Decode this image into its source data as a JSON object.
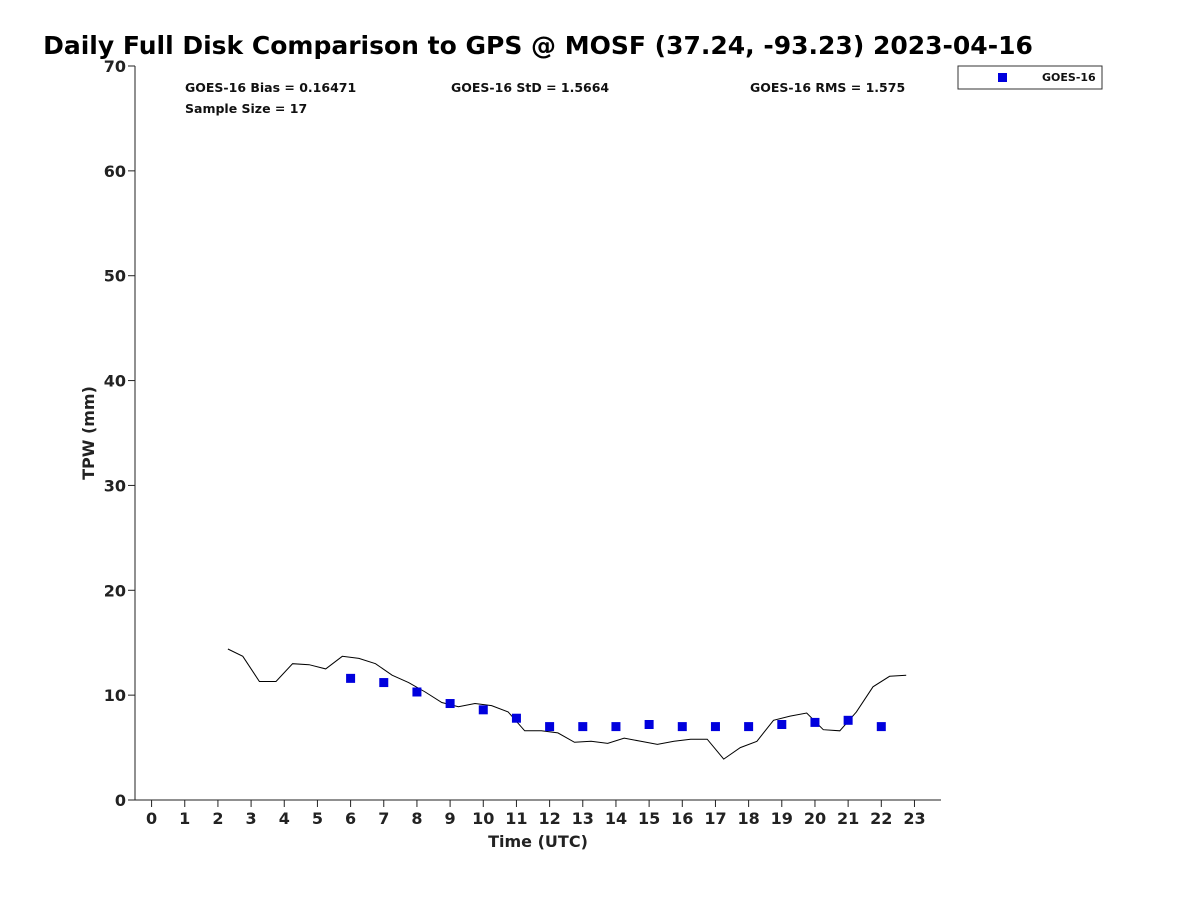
{
  "chart_data": {
    "type": "scatter",
    "title": "Daily Full Disk Comparison to GPS @ MOSF (37.24, -93.23) 2023-04-16",
    "xlabel": "Time (UTC)",
    "ylabel": "TPW (mm)",
    "xlim": [
      -0.5,
      23.8
    ],
    "ylim": [
      0,
      70
    ],
    "xticks": [
      0,
      1,
      2,
      3,
      4,
      5,
      6,
      7,
      8,
      9,
      10,
      11,
      12,
      13,
      14,
      15,
      16,
      17,
      18,
      19,
      20,
      21,
      22,
      23
    ],
    "yticks": [
      0,
      10,
      20,
      30,
      40,
      50,
      60,
      70
    ],
    "grid": false,
    "legend_position": "top-right",
    "stats": {
      "bias": "GOES-16 Bias = 0.16471",
      "std": "GOES-16 StD = 1.5664",
      "rms": "GOES-16 RMS = 1.575",
      "sample": "Sample Size = 17"
    },
    "series": [
      {
        "name": "GOES-16",
        "kind": "scatter",
        "color": "#0000dd",
        "x": [
          6,
          7,
          8,
          9,
          10,
          11,
          12,
          13,
          14,
          15,
          16,
          17,
          18,
          19,
          20,
          21,
          22
        ],
        "y": [
          11.6,
          11.2,
          10.3,
          9.2,
          8.6,
          7.8,
          7.0,
          7.0,
          7.0,
          7.2,
          7.0,
          7.0,
          7.0,
          7.2,
          7.4,
          7.6,
          7.0
        ]
      },
      {
        "kind": "line",
        "color": "#000000",
        "x": [
          2.3,
          2.75,
          3.25,
          3.75,
          4.25,
          4.75,
          5.25,
          5.75,
          6.25,
          6.75,
          7.25,
          7.75,
          8.25,
          8.75,
          9.25,
          9.75,
          10.25,
          10.75,
          11.25,
          11.75,
          12.25,
          12.75,
          13.25,
          13.75,
          14.25,
          14.75,
          15.25,
          15.75,
          16.25,
          16.75,
          17.25,
          17.75,
          18.25,
          18.75,
          19.25,
          19.75,
          20.25,
          20.75,
          21.25,
          21.75,
          22.25,
          22.75
        ],
        "y": [
          14.4,
          13.7,
          11.3,
          11.3,
          13.0,
          12.9,
          12.5,
          13.7,
          13.5,
          13.0,
          11.9,
          11.2,
          10.3,
          9.3,
          8.9,
          9.2,
          9.0,
          8.4,
          6.6,
          6.6,
          6.4,
          5.5,
          5.6,
          5.4,
          5.9,
          5.6,
          5.3,
          5.6,
          5.8,
          5.8,
          3.9,
          5.0,
          5.6,
          7.6,
          8.0,
          8.3,
          6.7,
          6.6,
          8.4,
          10.8,
          11.8,
          11.9
        ]
      }
    ]
  }
}
